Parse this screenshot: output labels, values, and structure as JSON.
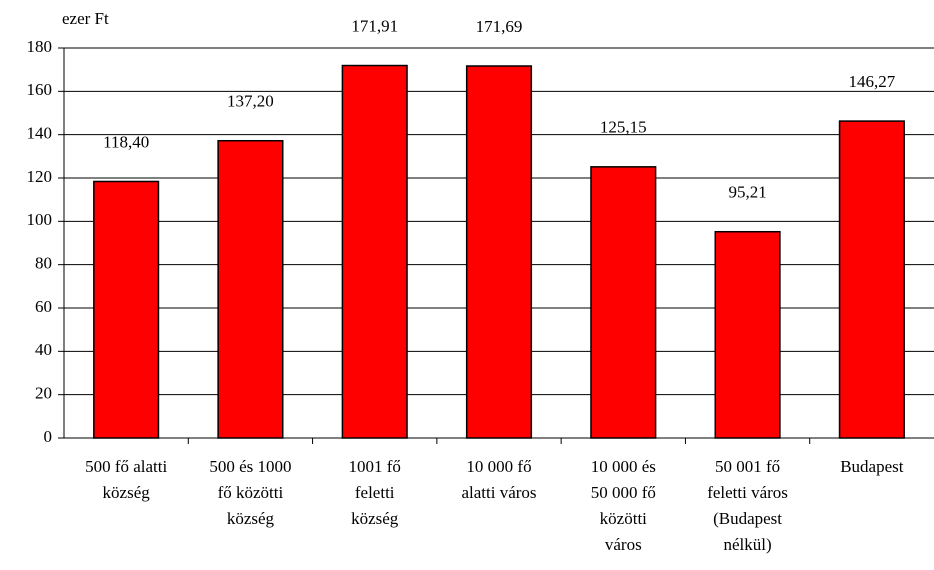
{
  "chart_data": {
    "type": "bar",
    "y_axis_label": "ezer Ft",
    "categories": [
      "500 fő alatti\nközség",
      "500 és 1000\nfő közötti\nközség",
      "1001 fő\nfeletti\nközség",
      "10 000 fő\nalatti város",
      "10 000 és\n50 000 fő\nközötti\nváros",
      "50 001 fő\nfeletti város\n(Budapest\nnélkül)",
      "Budapest"
    ],
    "values": [
      118.4,
      137.2,
      171.91,
      171.69,
      125.15,
      95.21,
      146.27
    ],
    "value_labels": [
      "118,40",
      "137,20",
      "171,91",
      "171,69",
      "125,15",
      "95,21",
      "146,27"
    ],
    "color": "#ff0000",
    "ylim": [
      0,
      180
    ],
    "yticks": [
      0,
      20,
      40,
      60,
      80,
      100,
      120,
      140,
      160,
      180
    ],
    "grid": true
  }
}
